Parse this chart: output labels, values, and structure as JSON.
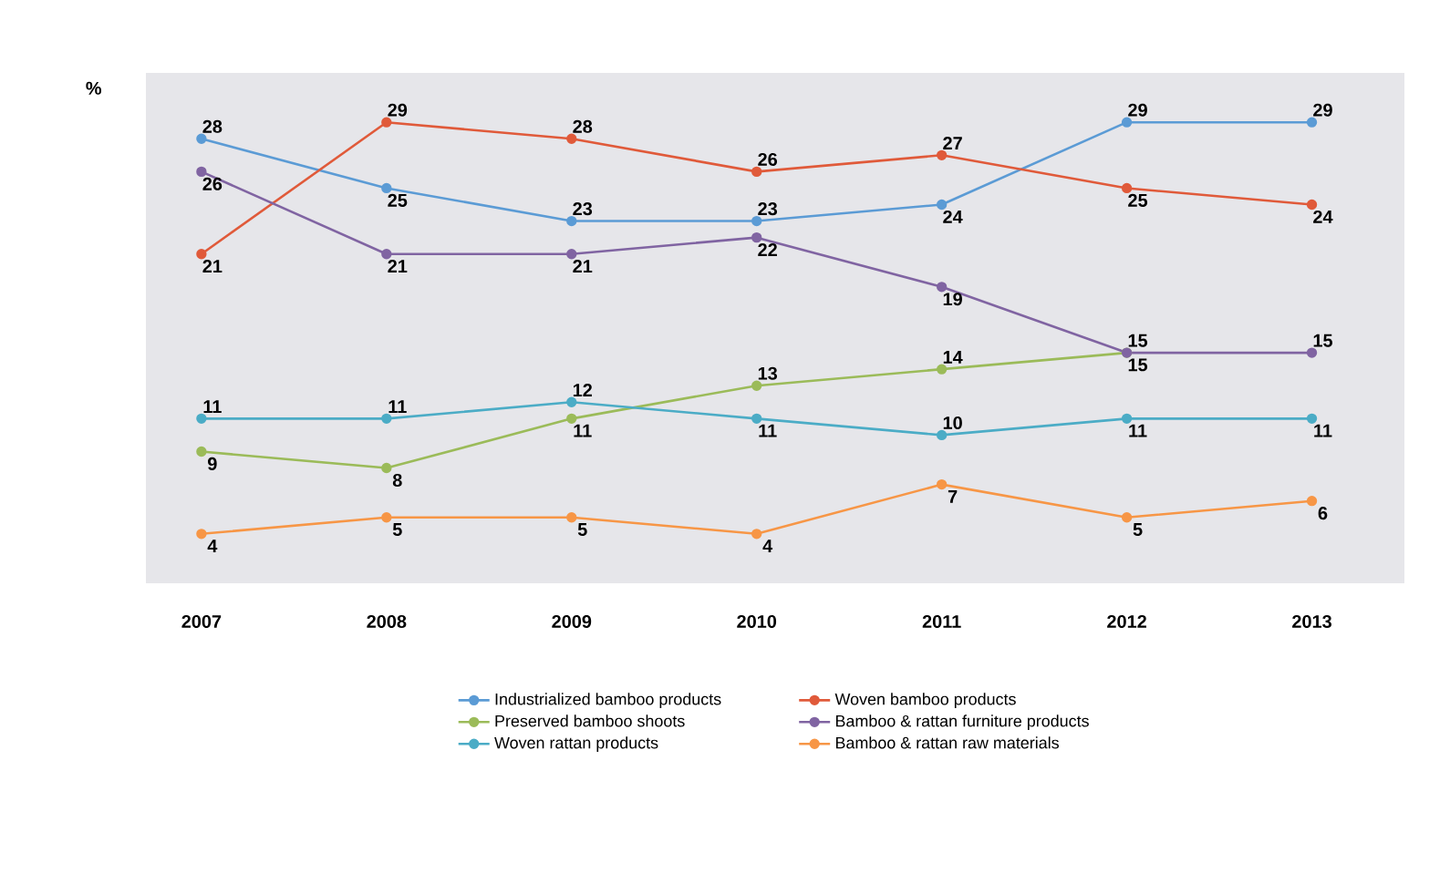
{
  "chart_data": {
    "type": "line",
    "ylabel": "%",
    "categories": [
      "2007",
      "2008",
      "2009",
      "2010",
      "2011",
      "2012",
      "2013"
    ],
    "series": [
      {
        "name": "Industrialized bamboo products",
        "color": "#5b9bd5",
        "values": [
          28,
          25,
          23,
          23,
          24,
          29,
          29
        ],
        "value_labels": [
          "28",
          "25",
          "23",
          "23",
          "24",
          "29",
          "29"
        ]
      },
      {
        "name": "Woven bamboo products",
        "color": "#e05a3a",
        "values": [
          21,
          29,
          28,
          26,
          27,
          25,
          24
        ],
        "value_labels": [
          "21",
          "29",
          "28",
          "26",
          "27",
          "25",
          "24"
        ]
      },
      {
        "name": "Preserved bamboo shoots",
        "color": "#9bbb59",
        "values": [
          9,
          8,
          11,
          13,
          14,
          15,
          null
        ],
        "value_labels": [
          "9",
          "8",
          "11",
          "13",
          "14",
          "15",
          null
        ]
      },
      {
        "name": "Bamboo & rattan furniture products",
        "color": "#8064a2",
        "values": [
          26,
          21,
          21,
          22,
          19,
          15,
          15
        ],
        "value_labels": [
          "26",
          "21",
          "21",
          "22",
          "19",
          "15",
          "15"
        ]
      },
      {
        "name": "Woven rattan products",
        "color": "#4bacc6",
        "values": [
          11,
          11,
          12,
          11,
          10,
          11,
          11
        ],
        "value_labels": [
          "11",
          "11",
          "12",
          "11",
          "10",
          "11",
          "11"
        ]
      },
      {
        "name": "Bamboo & rattan raw materials",
        "color": "#f79646",
        "values": [
          4,
          5,
          5,
          4,
          7,
          5,
          6
        ],
        "value_labels": [
          "4",
          "5",
          "5",
          "4",
          "7",
          "5",
          "6"
        ]
      }
    ],
    "legend": "bottom",
    "marker": "circle",
    "line_style": "solid",
    "grid": false
  }
}
